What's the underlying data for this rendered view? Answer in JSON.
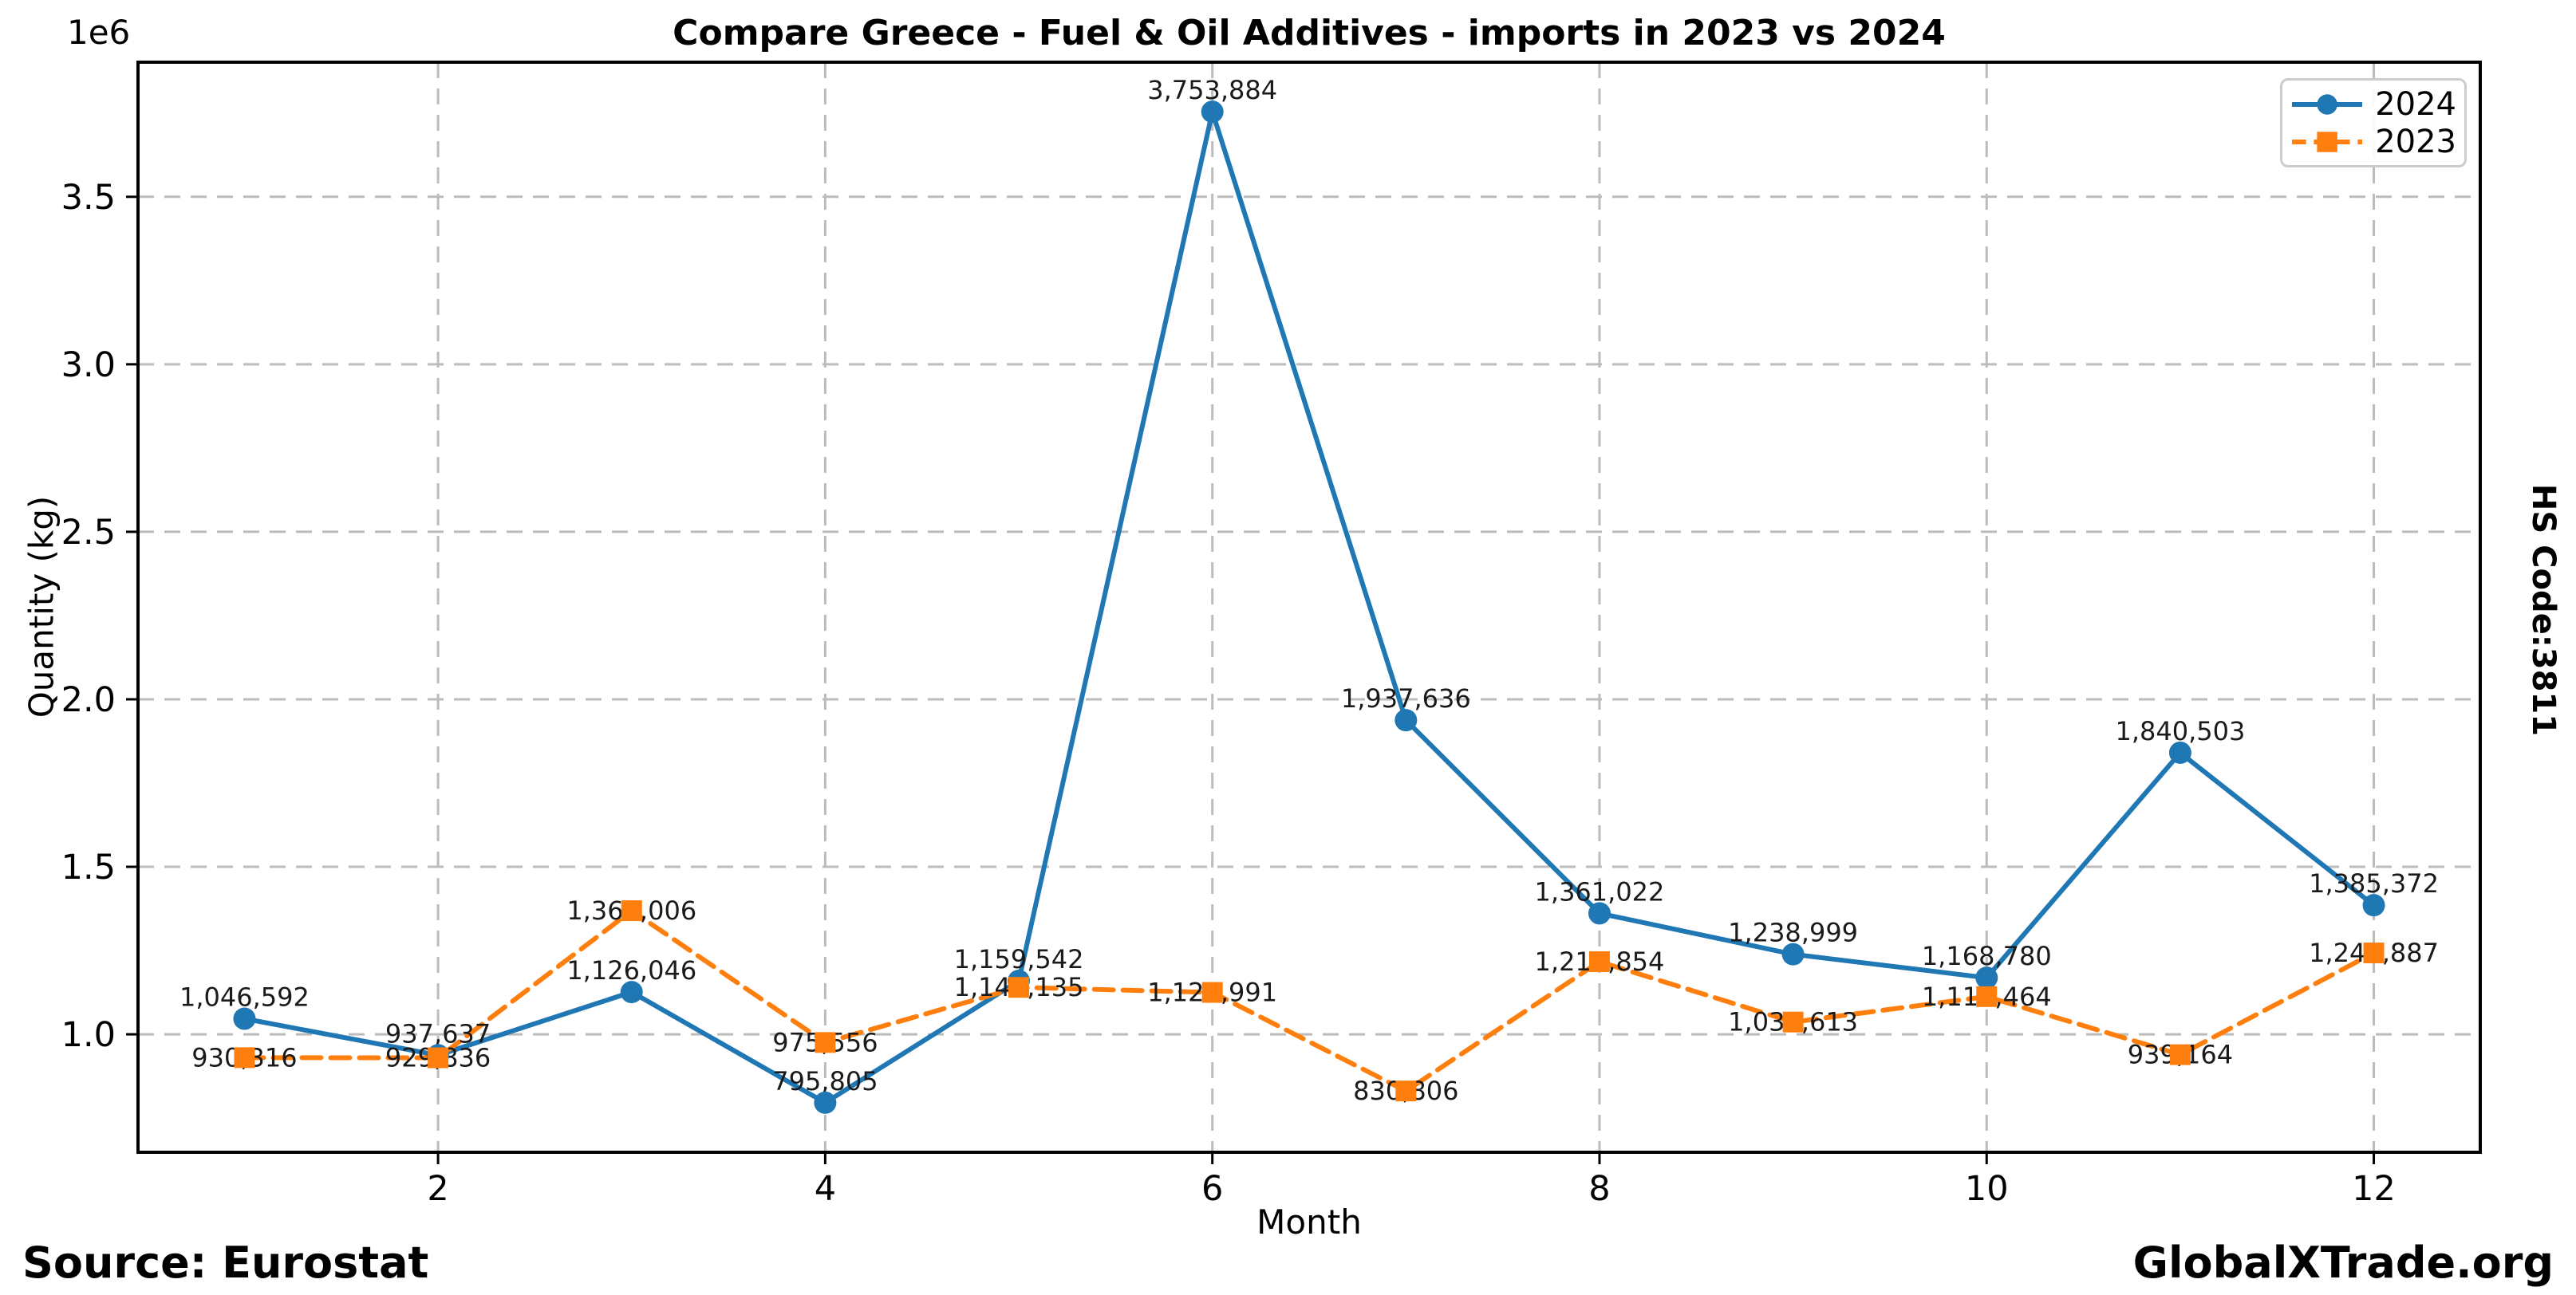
{
  "footer": {
    "source": "Source: Eurostat",
    "brand": "GlobalXTrade.org",
    "hs_code": "HS Code:3811"
  },
  "chart_data": {
    "type": "line",
    "title": "Compare Greece - Fuel & Oil Additives - imports in 2023 vs 2024",
    "xlabel": "Month",
    "ylabel": "Quantity (kg)",
    "offset_text": "1e6",
    "grid": true,
    "legend_position": "upper right",
    "x": [
      1,
      2,
      3,
      4,
      5,
      6,
      7,
      8,
      9,
      10,
      11,
      12
    ],
    "xticks": [
      2,
      4,
      6,
      8,
      10,
      12
    ],
    "yticks": [
      "1.0",
      "1.5",
      "2.0",
      "2.5",
      "3.0",
      "3.5"
    ],
    "ytick_scale": 1000000,
    "xlim": [
      0.45,
      12.55
    ],
    "ylim": [
      647901,
      3901788
    ],
    "series": [
      {
        "name": "2024",
        "color": "#1f77b4",
        "marker": "circle",
        "linestyle": "solid",
        "values": [
          1046592,
          937637,
          1126046,
          795805,
          1159542,
          3753884,
          1937636,
          1361022,
          1238999,
          1168780,
          1840503,
          1385372
        ],
        "labels": [
          "1,046,592",
          "937,637",
          "1,126,046",
          "795,805",
          "1,159,542",
          "3,753,884",
          "1,937,636",
          "1,361,022",
          "1,238,999",
          "1,168,780",
          "1,840,503",
          "1,385,372"
        ]
      },
      {
        "name": "2023",
        "color": "#ff7f0e",
        "marker": "square",
        "linestyle": "dashed",
        "values": [
          930316,
          929836,
          1369006,
          975556,
          1140135,
          1124991,
          830806,
          1216854,
          1036613,
          1112464,
          939164,
          1242887
        ],
        "labels": [
          "930,316",
          "929,836",
          "1,369,006",
          "975,556",
          "1,140,135",
          "1,124,991",
          "830,806",
          "1,216,854",
          "1,036,613",
          "1,112,464",
          "939,164",
          "1,242,887"
        ]
      }
    ]
  }
}
